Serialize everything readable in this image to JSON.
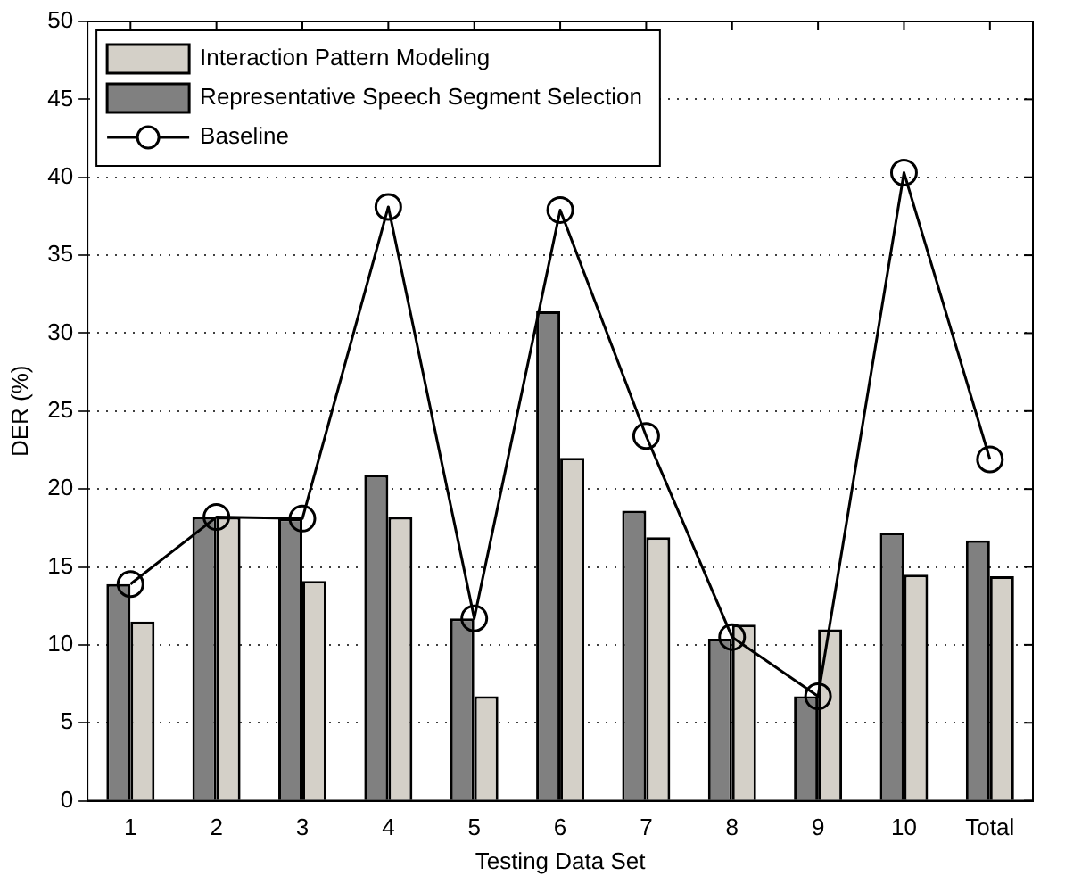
{
  "chart_data": {
    "type": "bar",
    "xlabel": "Testing Data Set",
    "ylabel": "DER (%)",
    "categories": [
      "1",
      "2",
      "3",
      "4",
      "5",
      "6",
      "7",
      "8",
      "9",
      "10",
      "Total"
    ],
    "series": [
      {
        "name": "Interaction Pattern Modeling",
        "color": "#d4d0c8",
        "values": [
          11.5,
          18.2,
          14.1,
          18.2,
          6.7,
          22.0,
          16.9,
          11.3,
          11.0,
          14.5,
          14.4
        ]
      },
      {
        "name": "Representative Speech Segment Selection",
        "color": "#808080",
        "values": [
          13.9,
          18.2,
          18.1,
          20.9,
          11.7,
          31.4,
          18.6,
          10.4,
          6.7,
          17.2,
          16.7
        ]
      },
      {
        "name": "Baseline",
        "type": "line",
        "color": "#000000",
        "marker": "circle",
        "values": [
          13.9,
          18.2,
          18.1,
          38.1,
          11.7,
          37.9,
          23.4,
          10.5,
          6.7,
          40.3,
          21.9
        ]
      }
    ],
    "ylim": [
      0,
      50
    ],
    "yticks": [
      0,
      5,
      10,
      15,
      20,
      25,
      30,
      35,
      40,
      45,
      50
    ],
    "grid": "y",
    "legend": "top left"
  }
}
